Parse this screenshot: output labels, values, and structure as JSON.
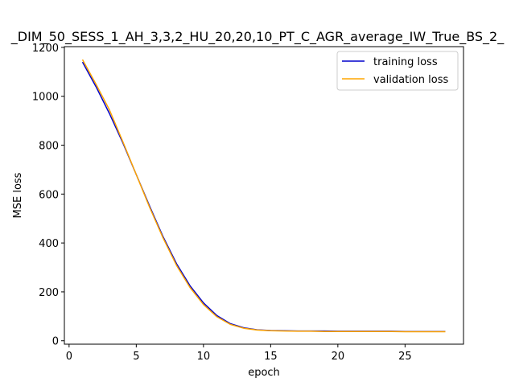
{
  "chart_data": {
    "type": "line",
    "title": "_DIM_50_SESS_1_AH_3,3,2_HU_20,20,10_PT_C_AGR_average_IW_True_BS_2_",
    "xlabel": "epoch",
    "ylabel": "MSE loss",
    "xlim": [
      -0.35,
      29.35
    ],
    "ylim": [
      -14,
      1203
    ],
    "xticks": [
      0,
      5,
      10,
      15,
      20,
      25
    ],
    "yticks": [
      0,
      200,
      400,
      600,
      800,
      1000,
      1200
    ],
    "grid": false,
    "legend_position": "top-right",
    "x": [
      1,
      2,
      3,
      4,
      5,
      6,
      7,
      8,
      9,
      10,
      11,
      12,
      13,
      14,
      15,
      16,
      17,
      18,
      19,
      20,
      21,
      22,
      23,
      24,
      25,
      26,
      27,
      28
    ],
    "series": [
      {
        "name": "training loss",
        "color": "#0000cc",
        "values": [
          1140,
          1040,
          930,
          810,
          680,
          550,
          425,
          315,
          225,
          155,
          103,
          70,
          53,
          45,
          42,
          41,
          40,
          40,
          40,
          39,
          39,
          39,
          39,
          39,
          38,
          38,
          38,
          38
        ]
      },
      {
        "name": "validation loss",
        "color": "#ffa500",
        "values": [
          1150,
          1050,
          945,
          815,
          680,
          545,
          420,
          308,
          218,
          148,
          98,
          67,
          51,
          44,
          41,
          40,
          39,
          39,
          38,
          38,
          38,
          38,
          38,
          38,
          37,
          37,
          37,
          37
        ]
      }
    ]
  }
}
